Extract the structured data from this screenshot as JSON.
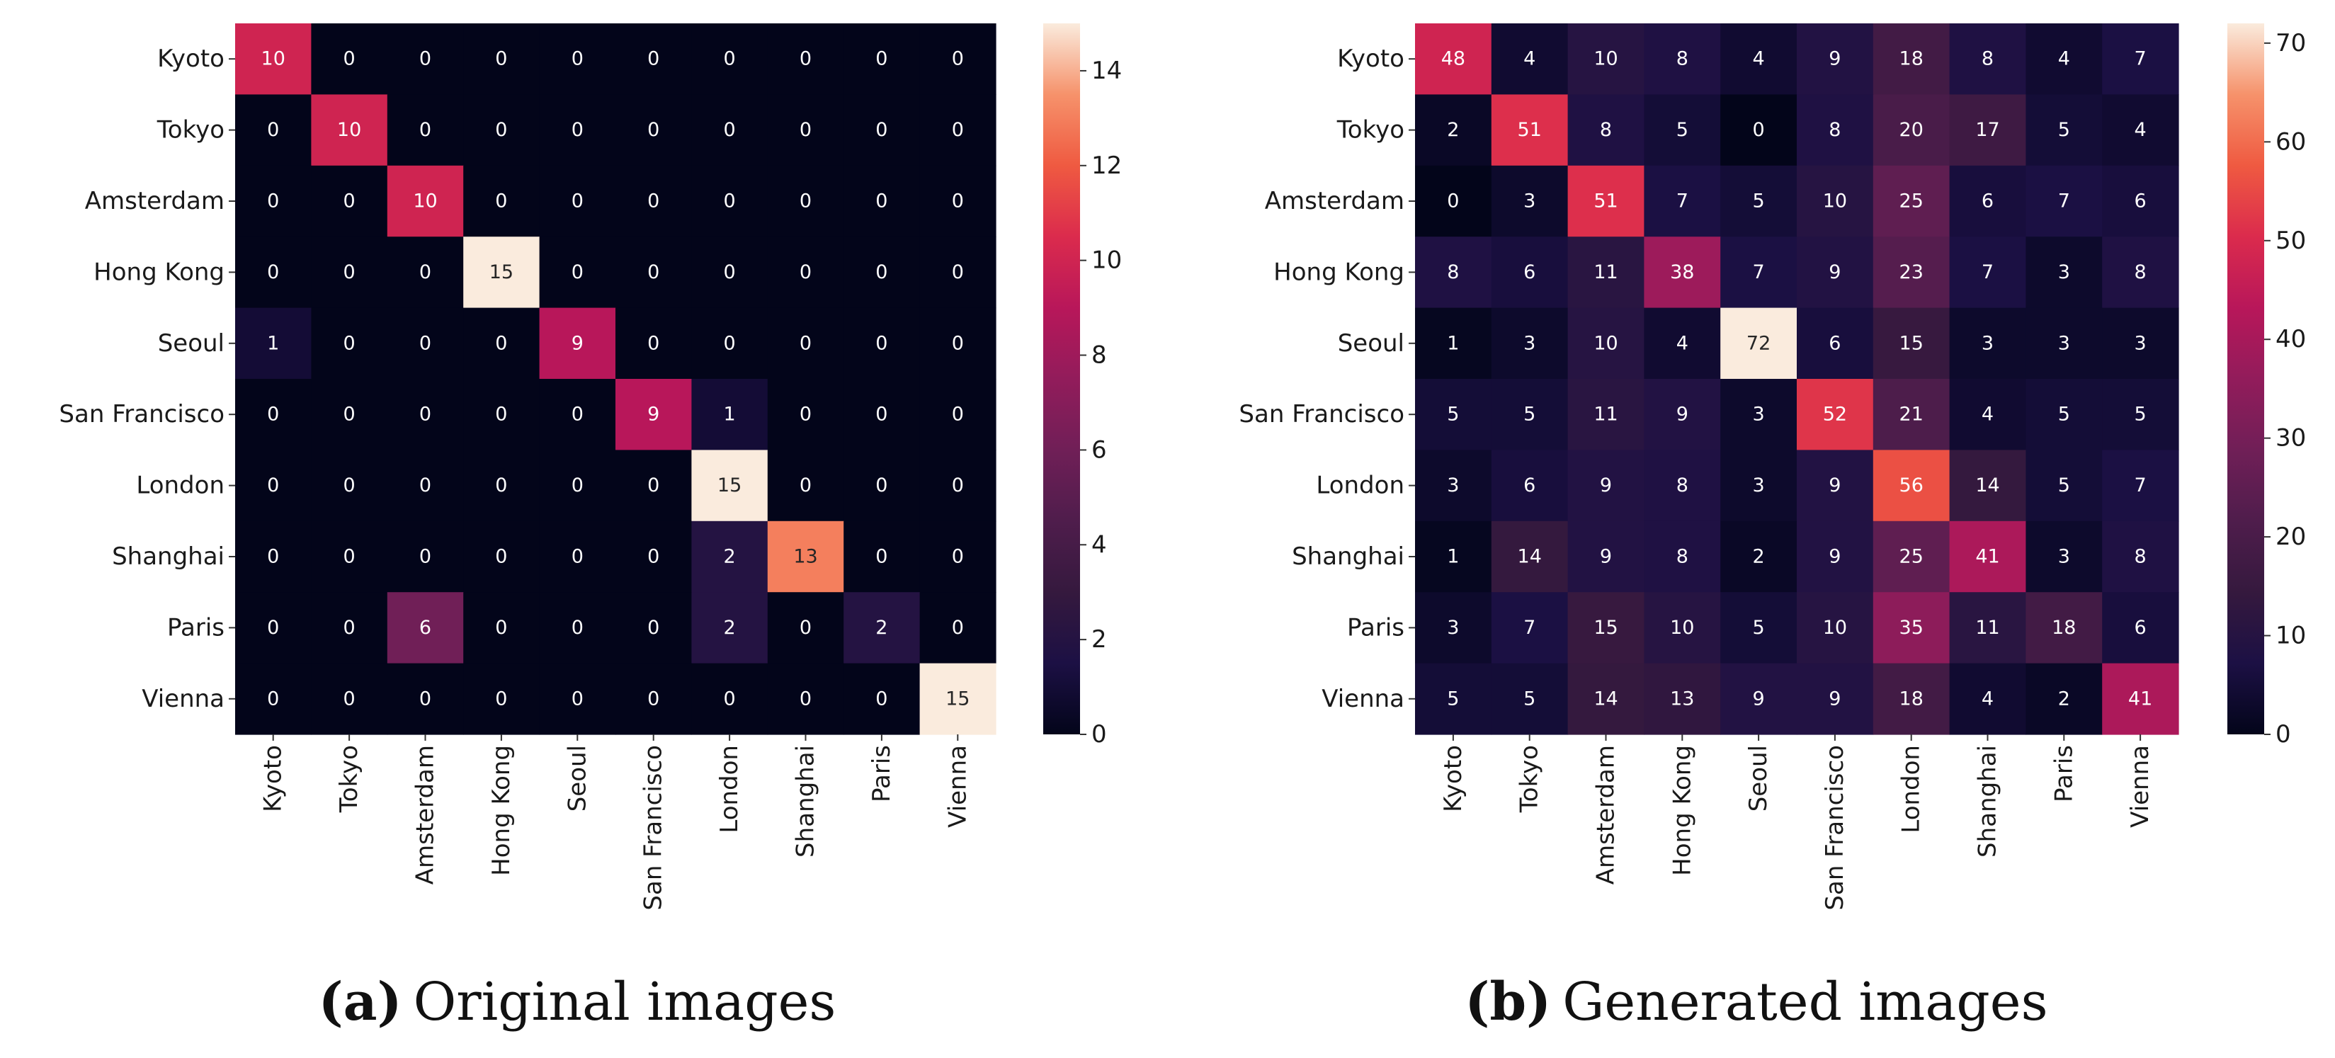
{
  "chart_data": [
    {
      "type": "heatmap",
      "caption_letter": "(a)",
      "caption_text": "Original images",
      "row_labels": [
        "Kyoto",
        "Tokyo",
        "Amsterdam",
        "Hong Kong",
        "Seoul",
        "San Francisco",
        "London",
        "Shanghai",
        "Paris",
        "Vienna"
      ],
      "col_labels": [
        "Kyoto",
        "Tokyo",
        "Amsterdam",
        "Hong Kong",
        "Seoul",
        "San Francisco",
        "London",
        "Shanghai",
        "Paris",
        "Vienna"
      ],
      "values": [
        [
          10,
          0,
          0,
          0,
          0,
          0,
          0,
          0,
          0,
          0
        ],
        [
          0,
          10,
          0,
          0,
          0,
          0,
          0,
          0,
          0,
          0
        ],
        [
          0,
          0,
          10,
          0,
          0,
          0,
          0,
          0,
          0,
          0
        ],
        [
          0,
          0,
          0,
          15,
          0,
          0,
          0,
          0,
          0,
          0
        ],
        [
          1,
          0,
          0,
          0,
          9,
          0,
          0,
          0,
          0,
          0
        ],
        [
          0,
          0,
          0,
          0,
          0,
          9,
          1,
          0,
          0,
          0
        ],
        [
          0,
          0,
          0,
          0,
          0,
          0,
          15,
          0,
          0,
          0
        ],
        [
          0,
          0,
          0,
          0,
          0,
          0,
          2,
          13,
          0,
          0
        ],
        [
          0,
          0,
          6,
          0,
          0,
          0,
          2,
          0,
          2,
          0
        ],
        [
          0,
          0,
          0,
          0,
          0,
          0,
          0,
          0,
          0,
          15
        ]
      ],
      "vmin": 0,
      "vmax": 15,
      "colorbar_ticks": [
        0,
        2,
        4,
        6,
        8,
        10,
        12,
        14
      ],
      "colormap": "rocket"
    },
    {
      "type": "heatmap",
      "caption_letter": "(b)",
      "caption_text": "Generated images",
      "row_labels": [
        "Kyoto",
        "Tokyo",
        "Amsterdam",
        "Hong Kong",
        "Seoul",
        "San Francisco",
        "London",
        "Shanghai",
        "Paris",
        "Vienna"
      ],
      "col_labels": [
        "Kyoto",
        "Tokyo",
        "Amsterdam",
        "Hong Kong",
        "Seoul",
        "San Francisco",
        "London",
        "Shanghai",
        "Paris",
        "Vienna"
      ],
      "values": [
        [
          48,
          4,
          10,
          8,
          4,
          9,
          18,
          8,
          4,
          7
        ],
        [
          2,
          51,
          8,
          5,
          0,
          8,
          20,
          17,
          5,
          4
        ],
        [
          0,
          3,
          51,
          7,
          5,
          10,
          25,
          6,
          7,
          6
        ],
        [
          8,
          6,
          11,
          38,
          7,
          9,
          23,
          7,
          3,
          8
        ],
        [
          1,
          3,
          10,
          4,
          72,
          6,
          15,
          3,
          3,
          3
        ],
        [
          5,
          5,
          11,
          9,
          3,
          52,
          21,
          4,
          5,
          5
        ],
        [
          3,
          6,
          9,
          8,
          3,
          9,
          56,
          14,
          5,
          7
        ],
        [
          1,
          14,
          9,
          8,
          2,
          9,
          25,
          41,
          3,
          8
        ],
        [
          3,
          7,
          15,
          10,
          5,
          10,
          35,
          11,
          18,
          6
        ],
        [
          5,
          5,
          14,
          13,
          9,
          9,
          18,
          4,
          2,
          41
        ]
      ],
      "vmin": 0,
      "vmax": 72,
      "colorbar_ticks": [
        0,
        10,
        20,
        30,
        40,
        50,
        60,
        70
      ],
      "colormap": "rocket"
    }
  ]
}
